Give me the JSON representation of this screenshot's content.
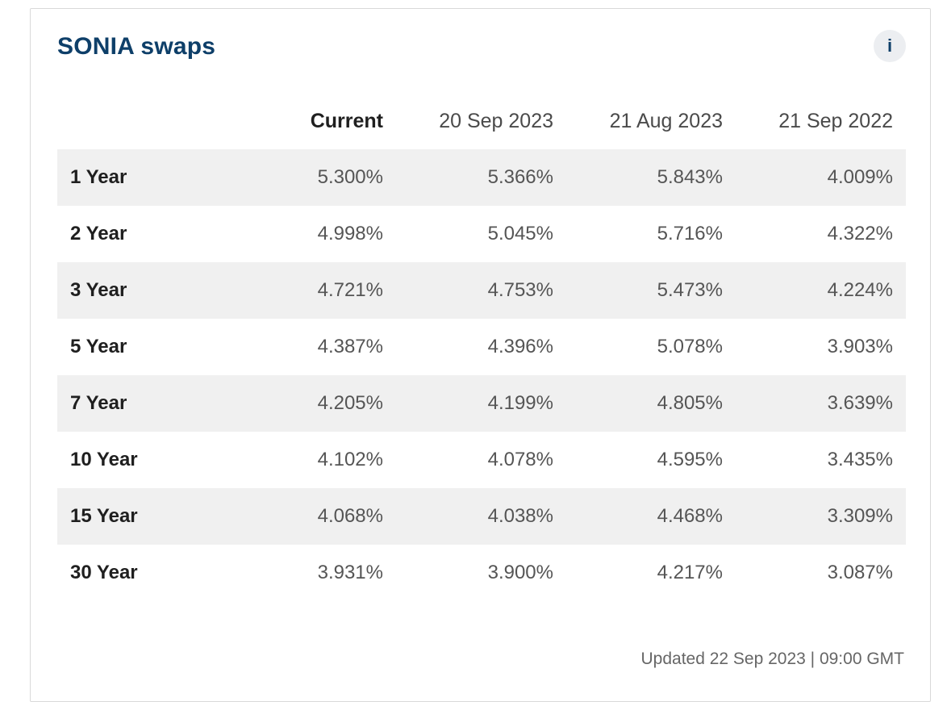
{
  "widget": {
    "title": "SONIA swaps",
    "info_icon": "info-icon",
    "info_label": "i"
  },
  "table": {
    "headers": [
      "Current",
      "20 Sep 2023",
      "21 Aug 2023",
      "21 Sep 2022"
    ],
    "rows": [
      {
        "term": "1 Year",
        "values": [
          "5.300%",
          "5.366%",
          "5.843%",
          "4.009%"
        ]
      },
      {
        "term": "2 Year",
        "values": [
          "4.998%",
          "5.045%",
          "5.716%",
          "4.322%"
        ]
      },
      {
        "term": "3 Year",
        "values": [
          "4.721%",
          "4.753%",
          "5.473%",
          "4.224%"
        ]
      },
      {
        "term": "5 Year",
        "values": [
          "4.387%",
          "4.396%",
          "5.078%",
          "3.903%"
        ]
      },
      {
        "term": "7 Year",
        "values": [
          "4.205%",
          "4.199%",
          "4.805%",
          "3.639%"
        ]
      },
      {
        "term": "10 Year",
        "values": [
          "4.102%",
          "4.078%",
          "4.595%",
          "3.435%"
        ]
      },
      {
        "term": "15 Year",
        "values": [
          "4.068%",
          "4.038%",
          "4.468%",
          "3.309%"
        ]
      },
      {
        "term": "30 Year",
        "values": [
          "3.931%",
          "3.900%",
          "4.217%",
          "3.087%"
        ]
      }
    ]
  },
  "footer": {
    "updated": "Updated 22 Sep 2023 | 09:00 GMT"
  }
}
